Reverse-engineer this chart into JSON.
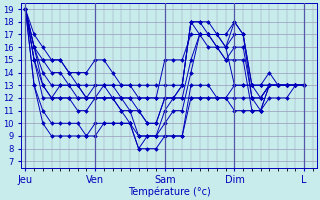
{
  "xlabel": "Température (°c)",
  "background_color": "#c8ecec",
  "grid_color": "#9999bb",
  "line_color": "#0000bb",
  "ylim": [
    6.5,
    19.5
  ],
  "yticks": [
    7,
    8,
    9,
    10,
    11,
    12,
    13,
    14,
    15,
    16,
    17,
    18,
    19
  ],
  "x_day_labels": [
    "Jeu",
    "Ven",
    "Sam",
    "Dim",
    "L"
  ],
  "x_day_positions": [
    0,
    8,
    16,
    24,
    32
  ],
  "xlim": [
    -0.5,
    33.5
  ],
  "series": [
    [
      19,
      16,
      13,
      12,
      12,
      12,
      12,
      12,
      12,
      12,
      12,
      12,
      12,
      12,
      12,
      12,
      12,
      12,
      12,
      12,
      12,
      12,
      12,
      12,
      13,
      13,
      13,
      13,
      13,
      13,
      13,
      13,
      13
    ],
    [
      19,
      15,
      12,
      12,
      13,
      13,
      13,
      13,
      13,
      13,
      13,
      13,
      13,
      13,
      13,
      13,
      13,
      13,
      13,
      18,
      18,
      17,
      17,
      16,
      13,
      13,
      13,
      13,
      13,
      13,
      13,
      13,
      13
    ],
    [
      19,
      13,
      10,
      9,
      9,
      9,
      9,
      9,
      9,
      10,
      10,
      10,
      10,
      9,
      9,
      9,
      9,
      9,
      9,
      13,
      13,
      13,
      12,
      12,
      11,
      11,
      11,
      11,
      13,
      13,
      13,
      13,
      13
    ],
    [
      19,
      13,
      11,
      10,
      10,
      10,
      10,
      9,
      10,
      10,
      10,
      10,
      10,
      8,
      8,
      8,
      9,
      9,
      9,
      12,
      12,
      12,
      12,
      12,
      12,
      12,
      12,
      12,
      13,
      13,
      13,
      13,
      13
    ],
    [
      19,
      15,
      15,
      15,
      15,
      14,
      13,
      12,
      12,
      12,
      12,
      11,
      11,
      11,
      10,
      10,
      12,
      12,
      13,
      18,
      17,
      16,
      16,
      16,
      17,
      17,
      12,
      12,
      13,
      13,
      13,
      13,
      13
    ],
    [
      19,
      17,
      16,
      15,
      15,
      14,
      14,
      14,
      15,
      15,
      14,
      13,
      13,
      12,
      12,
      12,
      15,
      15,
      15,
      17,
      17,
      17,
      17,
      17,
      18,
      17,
      13,
      13,
      14,
      13,
      13,
      13,
      13
    ],
    [
      19,
      16,
      14,
      13,
      13,
      13,
      12,
      12,
      12,
      13,
      12,
      12,
      11,
      9,
      9,
      9,
      11,
      12,
      12,
      15,
      17,
      17,
      16,
      15,
      16,
      16,
      12,
      11,
      13,
      13,
      13,
      13,
      13
    ],
    [
      19,
      15,
      13,
      12,
      12,
      12,
      11,
      11,
      12,
      12,
      12,
      11,
      10,
      8,
      9,
      9,
      10,
      11,
      11,
      14,
      17,
      17,
      16,
      15,
      15,
      15,
      11,
      11,
      12,
      12,
      12,
      13,
      13
    ],
    [
      19,
      16,
      15,
      14,
      14,
      13,
      13,
      12,
      13,
      13,
      13,
      12,
      12,
      11,
      10,
      10,
      12,
      12,
      13,
      18,
      18,
      18,
      17,
      16,
      18,
      17,
      13,
      12,
      13,
      13,
      13,
      13,
      13
    ]
  ]
}
